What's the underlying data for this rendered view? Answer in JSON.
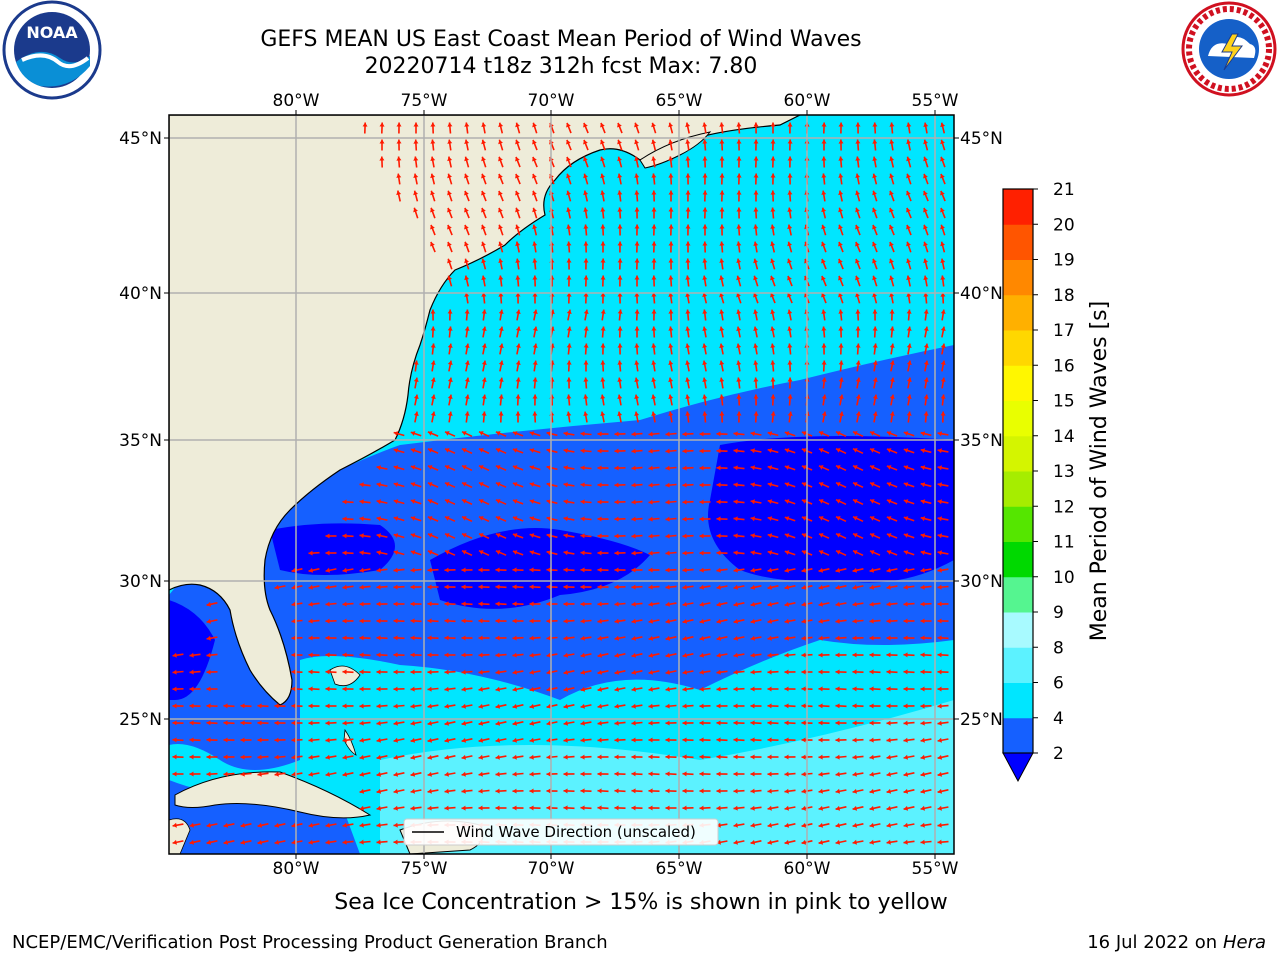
{
  "header": {
    "title_line1": "GEFS MEAN US East Coast Mean Period of Wind Waves",
    "title_line2": "20220714 t18z 312h fcst   Max: 7.80"
  },
  "logos": {
    "left": "NOAA",
    "right": "NATIONAL WEATHER SERVICE"
  },
  "map": {
    "lon_labels": [
      "80°W",
      "75°W",
      "70°W",
      "65°W",
      "60°W",
      "55°W"
    ],
    "lat_labels": [
      "45°N",
      "40°N",
      "35°N",
      "30°N",
      "25°N"
    ],
    "legend_label": "Wind Wave Direction (unscaled)",
    "colors": {
      "land": "#eeecd9",
      "grid": "#b0b0b0",
      "arrow": "#ff1a00",
      "coast": "#000000"
    }
  },
  "colorbar": {
    "label": "Mean Period of Wind Waves [s]",
    "ticks": [
      "2",
      "4",
      "6",
      "8",
      "9",
      "10",
      "11",
      "12",
      "13",
      "14",
      "15",
      "16",
      "17",
      "18",
      "19",
      "20",
      "21"
    ],
    "colors": [
      "#1560ff",
      "#00e6ff",
      "#5cf2ff",
      "#a8faff",
      "#55f590",
      "#00d900",
      "#55e600",
      "#a6ed00",
      "#d4f500",
      "#e9ff00",
      "#fff700",
      "#ffd700",
      "#ffb000",
      "#ff8800",
      "#ff5500",
      "#ff2000"
    ],
    "extend_color": "#0000ff"
  },
  "footer": {
    "note": "Sea Ice Concentration > 15% is shown in pink to yellow",
    "left": "NCEP/EMC/Verification Post Processing Product Generation Branch",
    "date": "16 Jul 2022 on ",
    "host": "Hera"
  }
}
